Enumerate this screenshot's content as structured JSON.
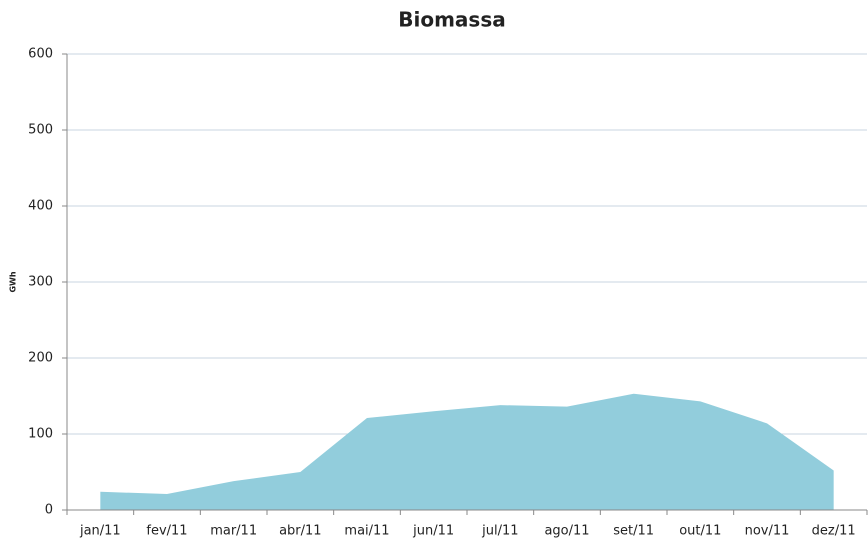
{
  "chart_data": {
    "type": "area",
    "title": "Biomassa",
    "y_label": "GWh",
    "categories": [
      "jan/11",
      "fev/11",
      "mar/11",
      "abr/11",
      "mai/11",
      "jun/11",
      "jul/11",
      "ago/11",
      "set/11",
      "out/11",
      "nov/11",
      "dez/11"
    ],
    "values": [
      24,
      21,
      38,
      50,
      121,
      130,
      138,
      136,
      153,
      143,
      114,
      52
    ],
    "color": "#92cddc",
    "ylim": [
      0,
      600
    ],
    "yticks": [
      0,
      100,
      200,
      300,
      400,
      500,
      600
    ],
    "grid": true
  }
}
